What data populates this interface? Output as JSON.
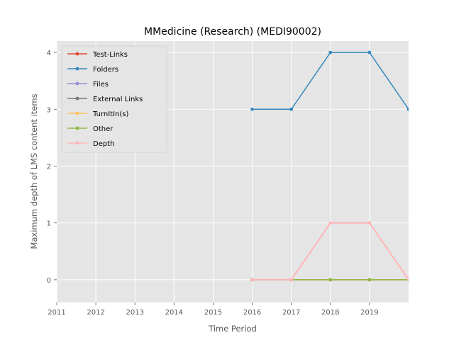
{
  "chart_data": {
    "type": "line",
    "title": "MMedicine (Research) (MEDI90002)",
    "xlabel": "Time Period",
    "ylabel": "Maximum depth of LMS content items",
    "x": [
      2016,
      2017,
      2018,
      2019,
      2020
    ],
    "xlim": [
      2011,
      2020
    ],
    "xticks": [
      2011,
      2012,
      2013,
      2014,
      2015,
      2016,
      2017,
      2018,
      2019
    ],
    "ylim": [
      -0.4,
      4.2
    ],
    "yticks": [
      0,
      1,
      2,
      3,
      4
    ],
    "grid": true,
    "legend_position": "top-left",
    "series": [
      {
        "name": "Test-Links",
        "color": "#E24A33",
        "values": [
          0,
          0,
          0,
          0,
          0
        ]
      },
      {
        "name": "Folders",
        "color": "#348ABD",
        "values": [
          3,
          3,
          4,
          4,
          3
        ]
      },
      {
        "name": "Files",
        "color": "#988ED5",
        "values": [
          0,
          0,
          0,
          0,
          0
        ]
      },
      {
        "name": "External Links",
        "color": "#777777",
        "values": [
          0,
          0,
          0,
          0,
          0
        ]
      },
      {
        "name": "TurnItIn(s)",
        "color": "#FBC15E",
        "values": [
          0,
          0,
          0,
          0,
          0
        ]
      },
      {
        "name": "Other",
        "color": "#8EBA42",
        "values": [
          0,
          0,
          0,
          0,
          0
        ]
      },
      {
        "name": "Depth",
        "color": "#FFB5B8",
        "values": [
          0,
          0,
          1,
          1,
          0
        ]
      }
    ]
  }
}
